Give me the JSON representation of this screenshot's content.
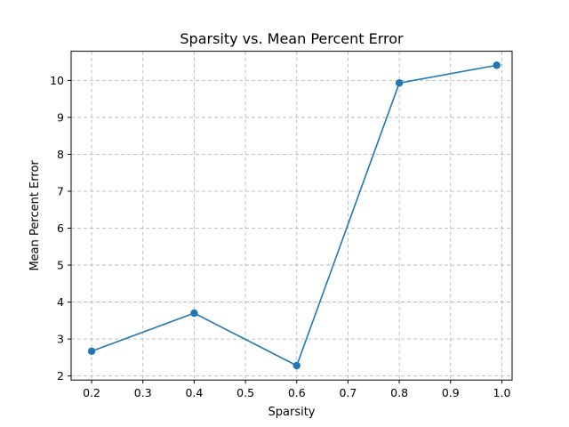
{
  "chart_data": {
    "type": "line",
    "title": "Sparsity vs. Mean Percent Error",
    "xlabel": "Sparsity",
    "ylabel": "Mean Percent Error",
    "xlim": [
      0.16,
      1.02
    ],
    "ylim": [
      1.89,
      10.79
    ],
    "xticks": [
      0.2,
      0.3,
      0.4,
      0.5,
      0.6,
      0.7,
      0.8,
      0.9,
      1.0
    ],
    "xtick_labels": [
      "0.2",
      "0.3",
      "0.4",
      "0.5",
      "0.6",
      "0.7",
      "0.8",
      "0.9",
      "1.0"
    ],
    "yticks": [
      2,
      3,
      4,
      5,
      6,
      7,
      8,
      9,
      10
    ],
    "ytick_labels": [
      "2",
      "3",
      "4",
      "5",
      "6",
      "7",
      "8",
      "9",
      "10"
    ],
    "grid": true,
    "marker": "circle",
    "series": [
      {
        "x": [
          0.2,
          0.4,
          0.6,
          0.8,
          0.99
        ],
        "y": [
          2.67,
          3.7,
          2.28,
          9.93,
          10.41
        ],
        "color": "#1f77b4"
      }
    ]
  }
}
